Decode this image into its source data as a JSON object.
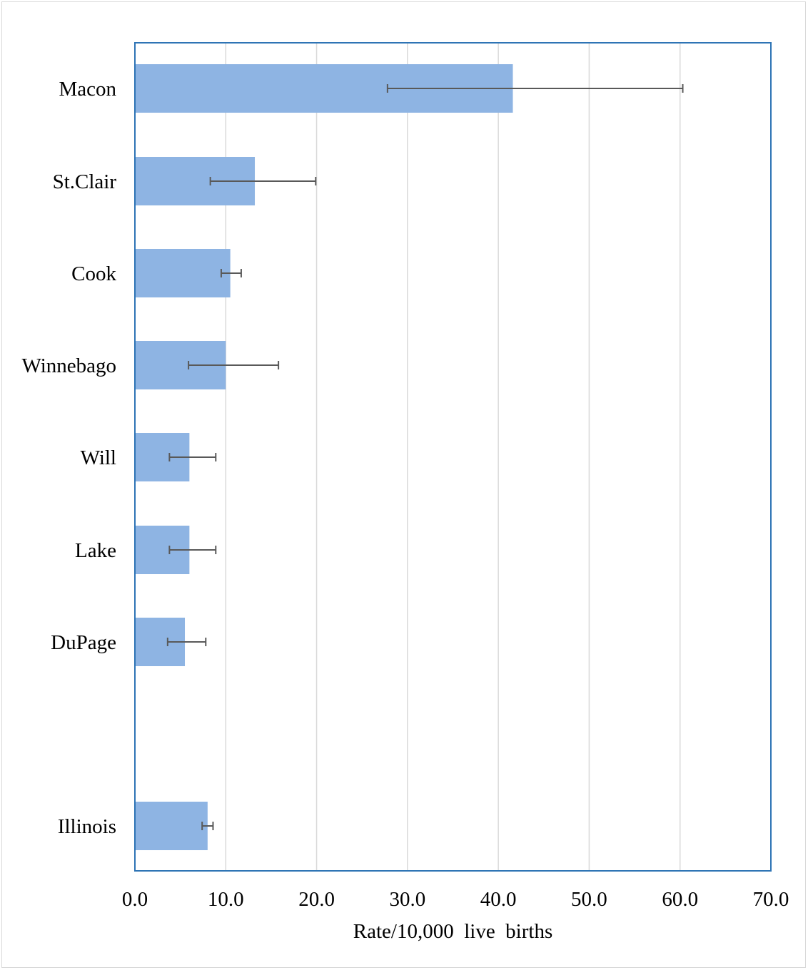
{
  "chart_data": {
    "type": "bar",
    "orientation": "horizontal",
    "title": "",
    "xlabel": "Rate/10,000  live  births",
    "ylabel": "",
    "xlim": [
      0,
      70
    ],
    "x_ticks": [
      "0.0",
      "10.0",
      "20.0",
      "30.0",
      "40.0",
      "50.0",
      "60.0",
      "70.0"
    ],
    "grid": "vertical",
    "legend": "none",
    "error_bars": true,
    "categories": [
      "Macon",
      "St.Clair",
      "Cook",
      "Winnebago",
      "Will",
      "Lake",
      "DuPage",
      "",
      "Illinois"
    ],
    "values": [
      41.6,
      13.2,
      10.5,
      10.0,
      6.0,
      6.0,
      5.5,
      null,
      8.0
    ],
    "error_low": [
      27.8,
      8.3,
      9.5,
      5.9,
      3.8,
      3.8,
      3.6,
      null,
      7.4
    ],
    "error_high": [
      60.3,
      19.9,
      11.7,
      15.8,
      8.9,
      8.9,
      7.8,
      null,
      8.6
    ],
    "colors": {
      "bar": "#8eb4e3",
      "error_bar": "#595959",
      "plot_border": "#2e74b5",
      "grid": "#d9d9d9",
      "frame": "#d9d9d9"
    }
  }
}
